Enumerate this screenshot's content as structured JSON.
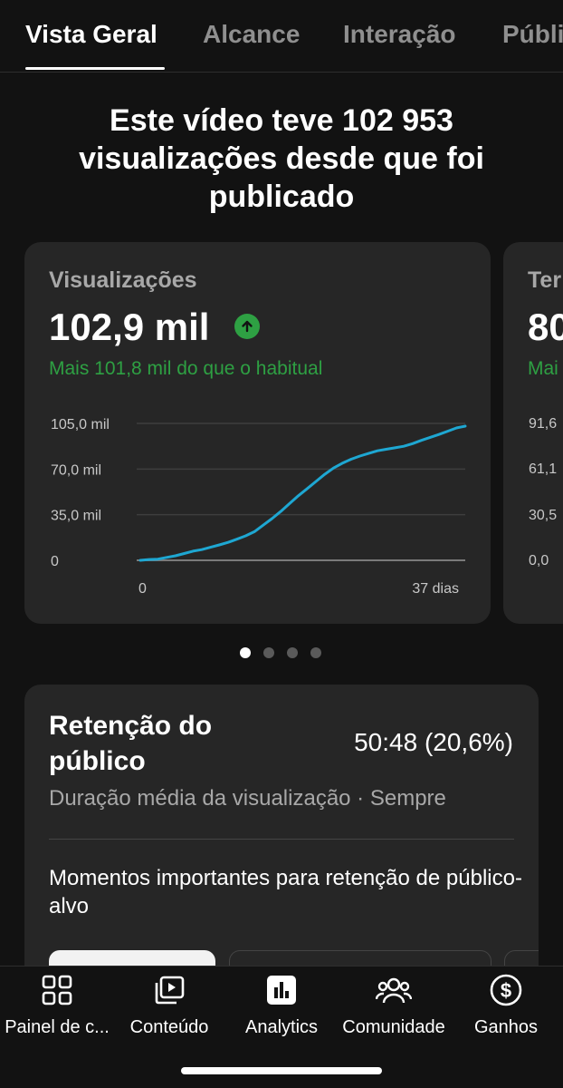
{
  "tabs": [
    {
      "label": "Vista Geral",
      "active": true
    },
    {
      "label": "Alcance",
      "active": false
    },
    {
      "label": "Interação",
      "active": false
    },
    {
      "label": "Públi",
      "active": false
    }
  ],
  "headline": "Este vídeo teve 102 953 visualizações desde que foi publicado",
  "metric_cards": [
    {
      "label": "Visualizações",
      "value": "102,9 mil",
      "trend_icon": "arrow-up-icon",
      "comparison": "Mais 101,8 mil do que o habitual"
    },
    {
      "label": "Ter",
      "value": "80",
      "comparison": "Mai",
      "y_ticks": [
        "91,6",
        "61,1",
        "30,5",
        "0,0"
      ]
    }
  ],
  "chart_data": {
    "type": "line",
    "title": "Visualizações",
    "x_tick_labels": [
      "0",
      "37 dias"
    ],
    "y_tick_labels": [
      "105,0 mil",
      "70,0 mil",
      "35,0 mil",
      "0"
    ],
    "ylim": [
      0,
      105000
    ],
    "xlim": [
      0,
      37
    ],
    "grid": true,
    "color": "#1ea7d2",
    "x": [
      0,
      1,
      2,
      3,
      4,
      5,
      6,
      7,
      8,
      9,
      10,
      11,
      12,
      13,
      14,
      15,
      16,
      17,
      18,
      19,
      20,
      21,
      22,
      23,
      24,
      25,
      26,
      27,
      28,
      29,
      30,
      31,
      32,
      33,
      34,
      35,
      36,
      37
    ],
    "values": [
      0,
      600,
      900,
      2200,
      3500,
      5200,
      7000,
      8200,
      10000,
      11800,
      13800,
      16200,
      18800,
      22000,
      27000,
      32000,
      37500,
      43500,
      49500,
      55000,
      60500,
      66000,
      70800,
      74500,
      77500,
      80000,
      82000,
      84000,
      85200,
      86300,
      87500,
      89500,
      92000,
      94300,
      96500,
      99000,
      101500,
      102900
    ]
  },
  "pagination": {
    "count": 4,
    "active_index": 0
  },
  "retention": {
    "title": "Retenção do público",
    "value": "50:48 (20,6%)",
    "subtitle": "Duração média da visualização · Sempre",
    "moments": "Momentos importantes para retenção de público-alvo"
  },
  "bottom_nav": [
    {
      "label": "Painel de c...",
      "icon": "dashboard-icon"
    },
    {
      "label": "Conteúdo",
      "icon": "content-library-icon"
    },
    {
      "label": "Analytics",
      "icon": "analytics-icon",
      "active": true
    },
    {
      "label": "Comunidade",
      "icon": "community-icon"
    },
    {
      "label": "Ganhos",
      "icon": "earnings-icon"
    }
  ],
  "colors": {
    "background": "#121212",
    "card": "#262626",
    "positive": "#2ea043",
    "line": "#1ea7d2",
    "muted_text": "#a8a8a8"
  }
}
